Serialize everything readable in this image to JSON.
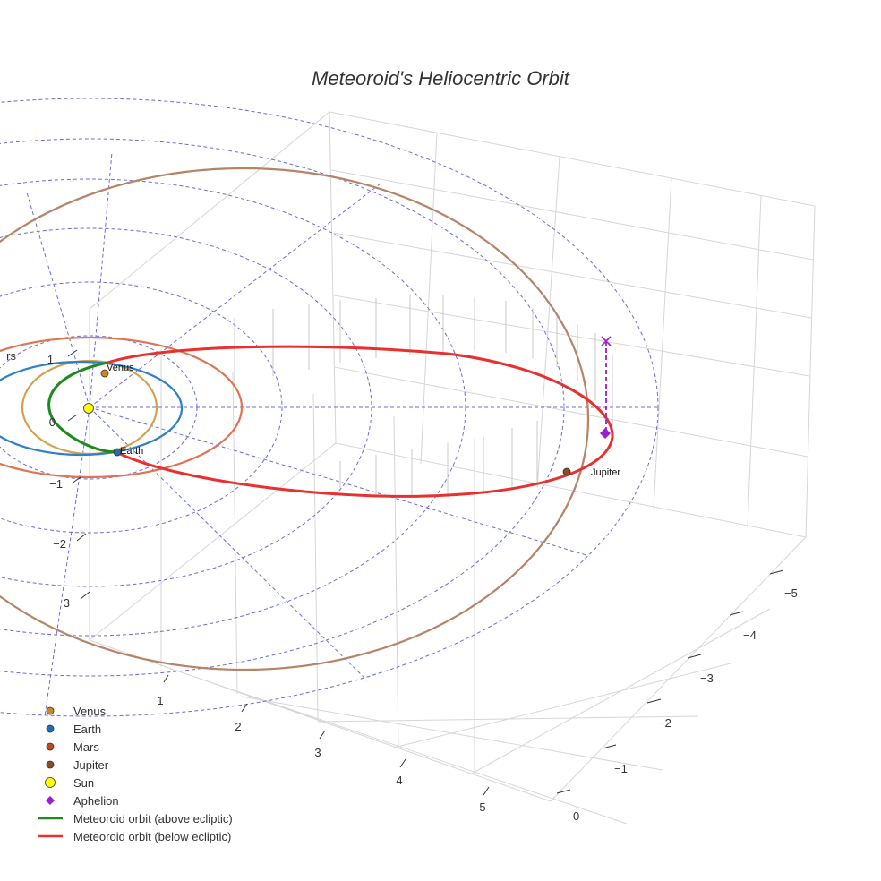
{
  "chart_data": {
    "type": "scatter3d",
    "title": "Meteoroid's Heliocentric Orbit",
    "axes": {
      "x": {
        "tick_labels": [
          "1",
          "2",
          "3",
          "4",
          "5"
        ]
      },
      "y": {
        "tick_labels": [
          "0",
          "−1",
          "−2",
          "−3",
          "−4",
          "−5"
        ]
      },
      "z": {
        "tick_labels": [
          "1",
          "0",
          "−1",
          "−2",
          "−3"
        ]
      }
    },
    "clipped_label": "rs",
    "planets": [
      {
        "name": "Venus",
        "label": "Venus",
        "color": "#c98a1a",
        "orbit_color": "#d2a150"
      },
      {
        "name": "Earth",
        "label": "Earth",
        "color": "#1f6fb8",
        "orbit_color": "#2f7ec8"
      },
      {
        "name": "Mars",
        "label": "",
        "color": "#c0491c",
        "orbit_color": "#de7552"
      },
      {
        "name": "Jupiter",
        "label": "Jupiter",
        "color": "#8c4a28",
        "orbit_color": "#b58468"
      }
    ],
    "sun": {
      "name": "Sun",
      "color": "#ffff00"
    },
    "aphelion": {
      "name": "Aphelion",
      "color": "#9b1fd1"
    },
    "series": [
      {
        "name": "Meteoroid orbit (above ecliptic)",
        "color": "#1e8a1e"
      },
      {
        "name": "Meteoroid orbit (below ecliptic)",
        "color": "#e83030"
      }
    ],
    "legend": {
      "position": "bottom-left",
      "entries": [
        {
          "label": "Venus",
          "symbol": "dot",
          "color": "#c98a1a"
        },
        {
          "label": "Earth",
          "symbol": "dot",
          "color": "#1f6fb8"
        },
        {
          "label": "Mars",
          "symbol": "dot",
          "color": "#c0491c"
        },
        {
          "label": "Jupiter",
          "symbol": "dot",
          "color": "#8c4a28"
        },
        {
          "label": "Sun",
          "symbol": "bigdot",
          "color": "#ffff00"
        },
        {
          "label": "Aphelion",
          "symbol": "diamond",
          "color": "#9b1fd1"
        },
        {
          "label": "Meteoroid orbit (above ecliptic)",
          "symbol": "line",
          "color": "#1e8a1e"
        },
        {
          "label": "Meteoroid orbit (below ecliptic)",
          "symbol": "line",
          "color": "#e83030"
        }
      ]
    },
    "grid": true
  }
}
